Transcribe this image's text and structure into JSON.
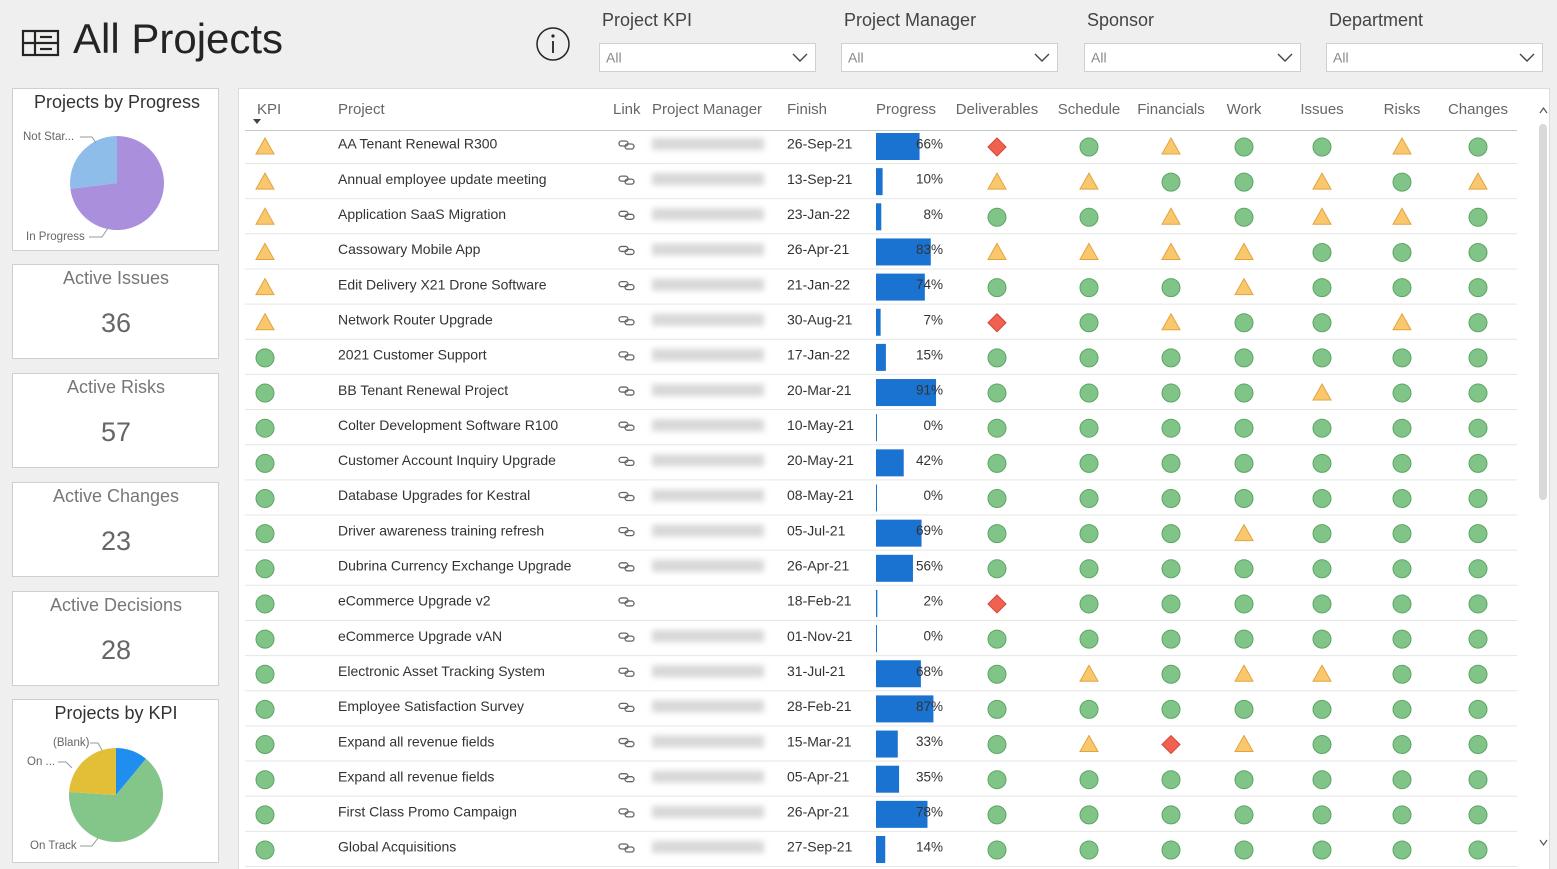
{
  "header": {
    "title": "All Projects"
  },
  "filters": [
    {
      "label": "Project KPI",
      "value": "All"
    },
    {
      "label": "Project Manager",
      "value": "All"
    },
    {
      "label": "Sponsor",
      "value": "All"
    },
    {
      "label": "Department",
      "value": "All"
    }
  ],
  "cards": {
    "progress_pie": {
      "type": "pie",
      "title": "Projects by Progress",
      "slices": [
        {
          "name": "In Progress",
          "value": 73,
          "color": "#a98fdc"
        },
        {
          "name": "Not Star...",
          "value": 27,
          "color": "#8ebde9"
        }
      ]
    },
    "metrics": [
      {
        "label": "Active Issues",
        "value": 36
      },
      {
        "label": "Active Risks",
        "value": 57
      },
      {
        "label": "Active Changes",
        "value": 23
      },
      {
        "label": "Active Decisions",
        "value": 28
      }
    ],
    "kpi_pie": {
      "type": "pie",
      "title": "Projects by KPI",
      "slices": [
        {
          "name": "(Blank)",
          "value": 11,
          "color": "#1f8ef0"
        },
        {
          "name": "On Track",
          "value": 65,
          "color": "#84c58a"
        },
        {
          "name": "On ...",
          "value": 24,
          "color": "#e2bf36"
        }
      ]
    }
  },
  "table": {
    "columns": [
      "KPI",
      "Project",
      "Link",
      "Project Manager",
      "Finish",
      "Progress",
      "Deliverables",
      "Schedule",
      "Financials",
      "Work",
      "Issues",
      "Risks",
      "Changes"
    ],
    "rows": [
      {
        "kpi": "A",
        "project": "AA Tenant Renewal R300",
        "finish": "26-Sep-21",
        "progress": 66,
        "progress_label": "66%",
        "status": [
          "R",
          "G",
          "A",
          "G",
          "G",
          "A",
          "G"
        ]
      },
      {
        "kpi": "A",
        "project": "Annual employee update meeting",
        "finish": "13-Sep-21",
        "progress": 10,
        "progress_label": "10%",
        "status": [
          "A",
          "A",
          "G",
          "G",
          "A",
          "G",
          "A"
        ]
      },
      {
        "kpi": "A",
        "project": "Application SaaS Migration",
        "finish": "23-Jan-22",
        "progress": 8,
        "progress_label": "8%",
        "status": [
          "G",
          "G",
          "A",
          "G",
          "A",
          "A",
          "G"
        ]
      },
      {
        "kpi": "A",
        "project": "Cassowary Mobile App",
        "finish": "26-Apr-21",
        "progress": 83,
        "progress_label": "83%",
        "status": [
          "A",
          "A",
          "A",
          "A",
          "G",
          "G",
          "G"
        ]
      },
      {
        "kpi": "A",
        "project": "Edit Delivery X21 Drone Software",
        "finish": "21-Jan-22",
        "progress": 74,
        "progress_label": "74%",
        "status": [
          "G",
          "G",
          "G",
          "A",
          "G",
          "G",
          "G"
        ]
      },
      {
        "kpi": "A",
        "project": "Network Router Upgrade",
        "finish": "30-Aug-21",
        "progress": 7,
        "progress_label": "7%",
        "status": [
          "R",
          "G",
          "A",
          "G",
          "G",
          "A",
          "G"
        ]
      },
      {
        "kpi": "G",
        "project": "2021 Customer Support",
        "finish": "17-Jan-22",
        "progress": 15,
        "progress_label": "15%",
        "status": [
          "G",
          "G",
          "G",
          "G",
          "G",
          "G",
          "G"
        ]
      },
      {
        "kpi": "G",
        "project": "BB Tenant Renewal Project",
        "finish": "20-Mar-21",
        "progress": 91,
        "progress_label": "91%",
        "status": [
          "G",
          "G",
          "G",
          "G",
          "A",
          "G",
          "G"
        ]
      },
      {
        "kpi": "G",
        "project": "Colter Development Software R100",
        "finish": "10-May-21",
        "progress": 0,
        "progress_label": "0%",
        "status": [
          "G",
          "G",
          "G",
          "G",
          "G",
          "G",
          "G"
        ]
      },
      {
        "kpi": "G",
        "project": "Customer Account Inquiry Upgrade",
        "finish": "20-May-21",
        "progress": 42,
        "progress_label": "42%",
        "status": [
          "G",
          "G",
          "G",
          "G",
          "G",
          "G",
          "G"
        ]
      },
      {
        "kpi": "G",
        "project": "Database Upgrades for Kestral",
        "finish": "08-May-21",
        "progress": 0,
        "progress_label": "0%",
        "status": [
          "G",
          "G",
          "G",
          "G",
          "G",
          "G",
          "G"
        ]
      },
      {
        "kpi": "G",
        "project": "Driver awareness training refresh",
        "finish": "05-Jul-21",
        "progress": 69,
        "progress_label": "69%",
        "status": [
          "G",
          "G",
          "G",
          "A",
          "G",
          "G",
          "G"
        ]
      },
      {
        "kpi": "G",
        "project": "Dubrina Currency Exchange Upgrade",
        "finish": "26-Apr-21",
        "progress": 56,
        "progress_label": "56%",
        "status": [
          "G",
          "G",
          "G",
          "G",
          "G",
          "G",
          "G"
        ]
      },
      {
        "kpi": "G",
        "project": "eCommerce Upgrade v2",
        "finish": "18-Feb-21",
        "progress": 2,
        "progress_label": "2%",
        "status": [
          "R",
          "G",
          "G",
          "G",
          "G",
          "G",
          "G"
        ]
      },
      {
        "kpi": "G",
        "project": "eCommerce Upgrade vAN",
        "finish": "01-Nov-21",
        "progress": 0,
        "progress_label": "0%",
        "status": [
          "G",
          "G",
          "G",
          "G",
          "G",
          "G",
          "G"
        ]
      },
      {
        "kpi": "G",
        "project": "Electronic Asset Tracking System",
        "finish": "31-Jul-21",
        "progress": 68,
        "progress_label": "68%",
        "status": [
          "G",
          "A",
          "G",
          "A",
          "A",
          "G",
          "G"
        ]
      },
      {
        "kpi": "G",
        "project": "Employee Satisfaction Survey",
        "finish": "28-Feb-21",
        "progress": 87,
        "progress_label": "87%",
        "status": [
          "G",
          "G",
          "G",
          "G",
          "G",
          "G",
          "G"
        ]
      },
      {
        "kpi": "G",
        "project": "Expand all revenue fields",
        "finish": "15-Mar-21",
        "progress": 33,
        "progress_label": "33%",
        "status": [
          "G",
          "A",
          "R",
          "A",
          "G",
          "G",
          "G"
        ]
      },
      {
        "kpi": "G",
        "project": "Expand all revenue fields",
        "finish": "05-Apr-21",
        "progress": 35,
        "progress_label": "35%",
        "status": [
          "G",
          "G",
          "G",
          "G",
          "G",
          "G",
          "G"
        ]
      },
      {
        "kpi": "G",
        "project": "First Class Promo Campaign",
        "finish": "26-Apr-21",
        "progress": 78,
        "progress_label": "78%",
        "status": [
          "G",
          "G",
          "G",
          "G",
          "G",
          "G",
          "G"
        ]
      },
      {
        "kpi": "G",
        "project": "Global Acquisitions",
        "finish": "27-Sep-21",
        "progress": 14,
        "progress_label": "14%",
        "status": [
          "G",
          "G",
          "G",
          "G",
          "G",
          "G",
          "G"
        ]
      }
    ]
  }
}
